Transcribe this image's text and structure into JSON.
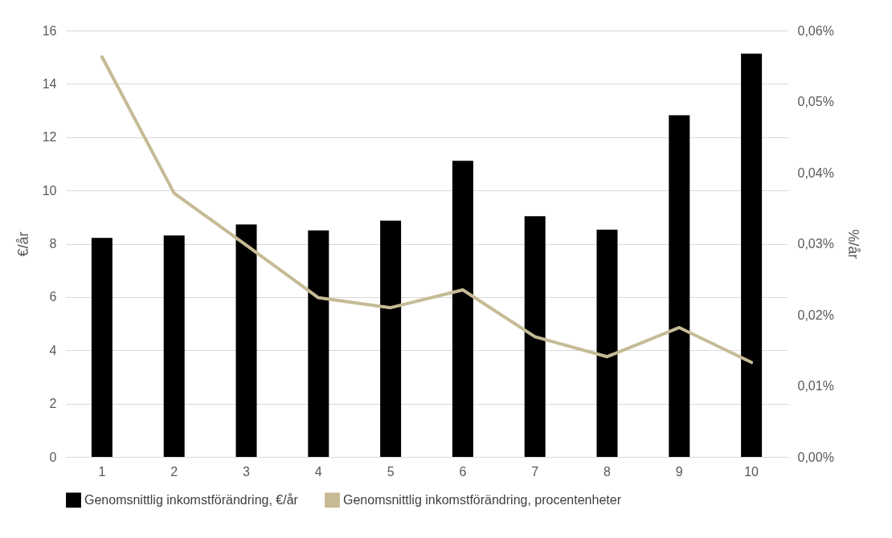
{
  "chart_data": {
    "type": "bar",
    "categories": [
      "1",
      "2",
      "3",
      "4",
      "5",
      "6",
      "7",
      "8",
      "9",
      "10"
    ],
    "series": [
      {
        "name": "Genomsnittlig inkomstförändring, €/år",
        "color": "#000000",
        "values": [
          8.22,
          8.31,
          8.72,
          8.5,
          8.87,
          11.11,
          9.03,
          8.53,
          12.82,
          15.13
        ]
      },
      {
        "name": "Genomsnittlig inkomstförändring, procentenheter",
        "color": "#c5bb95",
        "type": "line",
        "axis": "y2",
        "values": [
          0.0563,
          0.0371,
          0.0298,
          0.0224,
          0.021,
          0.0235,
          0.0169,
          0.0141,
          0.0182,
          0.0133
        ]
      }
    ],
    "ylabel": "€/år",
    "y2label": "%/år",
    "ylim": [
      0,
      16
    ],
    "yticks": [
      0,
      2,
      4,
      6,
      8,
      10,
      12,
      14,
      16
    ],
    "y2lim": [
      0,
      0.06
    ],
    "y2ticks": [
      {
        "value": 0,
        "label": "0,00%"
      },
      {
        "value": 0.01,
        "label": "0,01%"
      },
      {
        "value": 0.02,
        "label": "0,02%"
      },
      {
        "value": 0.03,
        "label": "0,03%"
      },
      {
        "value": 0.04,
        "label": "0,04%"
      },
      {
        "value": 0.05,
        "label": "0,05%"
      },
      {
        "value": 0.06,
        "label": "0,06%"
      }
    ],
    "grid": "y",
    "legend": "bottom"
  }
}
